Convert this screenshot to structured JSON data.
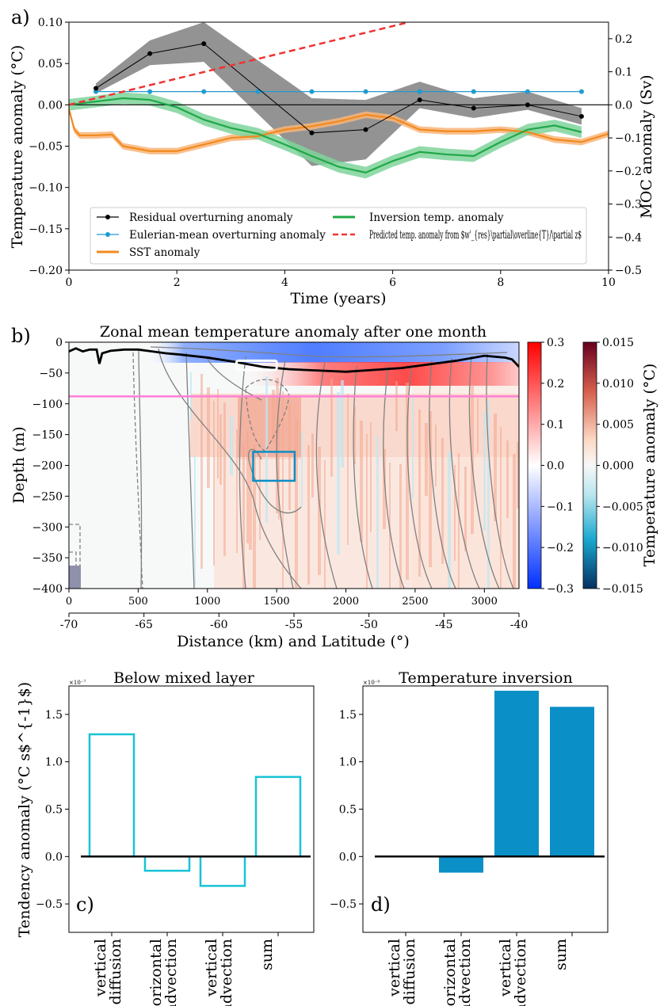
{
  "panels": {
    "a": "a)",
    "b": "b)",
    "c": "c)",
    "d": "d)"
  },
  "chart_data": [
    {
      "type": "line",
      "panel": "a",
      "xlabel": "Time (years)",
      "ylabel": "Temperature anomaly (°C)",
      "ylabel_right": "MOC anomaly (Sv)",
      "xlim": [
        0,
        10
      ],
      "ylim": [
        -0.2,
        0.1
      ],
      "ylim_right": [
        -0.5,
        0.25
      ],
      "xticks": [
        "0",
        "2",
        "4",
        "6",
        "8",
        "10"
      ],
      "yticks": [
        "0.10",
        "0.05",
        "0.00",
        "−0.05",
        "−0.10",
        "−0.15",
        "−0.20"
      ],
      "yticks_right": [
        "0.2",
        "0.1",
        "0.0",
        "−0.1",
        "−0.2",
        "−0.3",
        "−0.4",
        "−0.5"
      ],
      "legend_position": "bottom-center",
      "colors": {
        "residual": "#000000",
        "residual_band": "#808080",
        "eulerian": "#1f9bd0",
        "sst": "#f28a1d",
        "sst_band": "#f8b57a",
        "inversion": "#1fa846",
        "inversion_band": "#7fd49b",
        "predicted": "#f03232"
      },
      "series": [
        {
          "name": "Residual overturning anomaly",
          "axis": "right",
          "x": [
            0.5,
            1.5,
            2.5,
            4.5,
            5.5,
            6.5,
            7.5,
            8.5,
            9.5
          ],
          "y": [
            0.05,
            0.155,
            0.185,
            -0.085,
            -0.075,
            0.015,
            -0.01,
            0.0,
            -0.035
          ],
          "band": [
            [
              0.035,
              0.065
            ],
            [
              0.12,
              0.195
            ],
            [
              0.13,
              0.25
            ],
            [
              -0.185,
              0.02
            ],
            [
              -0.165,
              0.015
            ],
            [
              -0.01,
              0.07
            ],
            [
              -0.04,
              0.02
            ],
            [
              -0.015,
              0.04
            ],
            [
              -0.06,
              -0.01
            ]
          ]
        },
        {
          "name": "Eulerian-mean overturning anomaly",
          "axis": "right",
          "x": [
            0.5,
            1.5,
            2.5,
            3.5,
            4.5,
            5.5,
            6.5,
            7.5,
            8.5,
            9.5
          ],
          "y": [
            0.04,
            0.04,
            0.04,
            0.04,
            0.04,
            0.04,
            0.04,
            0.04,
            0.04,
            0.04
          ]
        },
        {
          "name": "SST anomaly",
          "axis": "left",
          "x": [
            0.0,
            0.1,
            0.2,
            0.5,
            0.8,
            1.0,
            1.5,
            2.0,
            2.5,
            3.0,
            3.5,
            4.0,
            4.5,
            5.0,
            5.5,
            6.0,
            6.5,
            7.0,
            7.5,
            8.0,
            8.5,
            9.0,
            9.5,
            10.0
          ],
          "y": [
            -0.005,
            -0.03,
            -0.037,
            -0.037,
            -0.036,
            -0.05,
            -0.056,
            -0.056,
            -0.048,
            -0.04,
            -0.038,
            -0.03,
            -0.026,
            -0.02,
            -0.012,
            -0.016,
            -0.03,
            -0.032,
            -0.032,
            -0.03,
            -0.033,
            -0.042,
            -0.045,
            -0.035
          ],
          "band_halfwidth": 0.004
        },
        {
          "name": "Inversion temp. anomaly",
          "axis": "left",
          "x": [
            0.0,
            0.5,
            1.0,
            1.5,
            2.0,
            2.5,
            3.0,
            3.5,
            4.0,
            4.5,
            5.0,
            5.5,
            6.0,
            6.5,
            7.0,
            7.5,
            8.0,
            8.5,
            9.0,
            9.5
          ],
          "y": [
            0.0,
            0.004,
            0.008,
            0.006,
            -0.003,
            -0.018,
            -0.028,
            -0.035,
            -0.048,
            -0.062,
            -0.075,
            -0.082,
            -0.068,
            -0.057,
            -0.06,
            -0.062,
            -0.045,
            -0.03,
            -0.025,
            -0.033
          ],
          "band_halfwidth": 0.007
        },
        {
          "name": "Predicted temp. anomaly from $w'_{res}\\partial\\overline{T}/\\partial z$",
          "axis": "left",
          "style": "dashed",
          "x": [
            0.0,
            6.3
          ],
          "y": [
            0.0,
            0.1
          ]
        }
      ]
    },
    {
      "type": "heatmap",
      "panel": "b",
      "title": "Zonal mean temperature anomaly after one month",
      "xlabel": "Distance (km) and Latitude (°)",
      "ylabel": "Depth (m)",
      "xlim": [
        0,
        3250
      ],
      "ylim": [
        -400,
        0
      ],
      "xticks": [
        "0",
        "500",
        "1000",
        "1500",
        "2000",
        "2500",
        "3000"
      ],
      "xticks_lat": [
        "-70",
        "-65",
        "-60",
        "-55",
        "-50",
        "-45",
        "-40"
      ],
      "yticks": [
        "0",
        "−50",
        "−100",
        "−150",
        "−200",
        "−250",
        "−300",
        "−350",
        "−400"
      ],
      "colorbar_inversion": {
        "range": [
          -0.3,
          0.3
        ],
        "ticks": [
          "0.3",
          "0.2",
          "0.1",
          "0.0",
          "−0.1",
          "−0.2",
          "−0.3"
        ]
      },
      "colorbar_main": {
        "label": "Temperature anomaly (°C)",
        "range": [
          -0.015,
          0.015
        ],
        "ticks": [
          "0.015",
          "0.010",
          "0.005",
          "0.000",
          "−0.005",
          "−0.010",
          "−0.015"
        ]
      },
      "mixed_layer_depth": {
        "x": [
          0,
          50,
          100,
          150,
          200,
          220,
          240,
          300,
          400,
          500,
          600,
          700,
          800,
          1000,
          1200,
          1400,
          1600,
          1800,
          2000,
          2200,
          2400,
          2600,
          2800,
          3000,
          3150,
          3200,
          3250
        ],
        "y": [
          -15,
          -10,
          -15,
          -12,
          -12,
          -35,
          -18,
          -14,
          -12,
          -12,
          -15,
          -18,
          -20,
          -25,
          -32,
          -40,
          -44,
          -46,
          -48,
          -45,
          -42,
          -36,
          -30,
          -22,
          -25,
          -28,
          -40
        ]
      },
      "reference_depth_m": -88,
      "inversion_box": {
        "x": [
          1210,
          1500
        ],
        "y": [
          -30,
          -45
        ]
      },
      "below_ml_box": {
        "x": [
          1330,
          1630
        ],
        "y": [
          -178,
          -225
        ]
      }
    },
    {
      "type": "bar",
      "panel": "c",
      "title": "Below mixed layer",
      "ylabel": "Tendency anomaly (°C s$^{-1}$)",
      "scale_label": "×10⁻⁷",
      "categories": [
        "vertical\ndiffusion",
        "horizontal\nadvection",
        "vertical\nadvection",
        "sum"
      ],
      "values": [
        1.29,
        -0.15,
        -0.31,
        0.84
      ],
      "ylim": [
        -0.8,
        1.8
      ],
      "yticks": [
        "1.5",
        "1.0",
        "0.5",
        "0.0",
        "−0.5"
      ],
      "style": "outline",
      "color": "#17c3d6"
    },
    {
      "type": "bar",
      "panel": "d",
      "title": "Temperature inversion",
      "scale_label": "×10⁻⁹",
      "categories": [
        "vertical\ndiffusion",
        "horizontal\nadvection",
        "vertical\nadvection",
        "sum"
      ],
      "values": [
        0.0,
        -0.17,
        1.75,
        1.58
      ],
      "ylim": [
        -0.8,
        1.8
      ],
      "yticks": [
        "1.5",
        "1.0",
        "0.5",
        "0.0",
        "−0.5"
      ],
      "style": "filled",
      "color": "#0a8fc6"
    }
  ]
}
